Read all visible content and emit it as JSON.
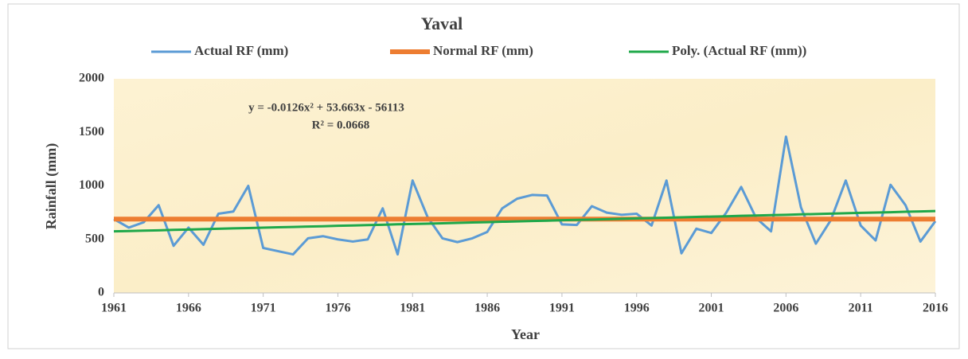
{
  "chart_data": {
    "type": "line",
    "title": "Yaval",
    "x": [
      1961,
      1962,
      1963,
      1964,
      1965,
      1966,
      1967,
      1968,
      1969,
      1970,
      1971,
      1972,
      1973,
      1974,
      1975,
      1976,
      1977,
      1978,
      1979,
      1980,
      1981,
      1982,
      1983,
      1984,
      1985,
      1986,
      1987,
      1988,
      1989,
      1990,
      1991,
      1992,
      1993,
      1994,
      1995,
      1996,
      1997,
      1998,
      1999,
      2000,
      2001,
      2002,
      2003,
      2004,
      2005,
      2006,
      2007,
      2008,
      2009,
      2010,
      2011,
      2012,
      2013,
      2014,
      2015,
      2016
    ],
    "series": [
      {
        "name": "Actual RF (mm)",
        "color": "#5b9bd5",
        "width": 3,
        "values": [
          690,
          610,
          660,
          820,
          440,
          610,
          450,
          740,
          760,
          1000,
          420,
          390,
          360,
          510,
          530,
          500,
          480,
          500,
          790,
          360,
          1050,
          710,
          510,
          475,
          510,
          570,
          790,
          880,
          915,
          910,
          640,
          635,
          810,
          750,
          730,
          740,
          630,
          1050,
          370,
          600,
          560,
          750,
          990,
          700,
          575,
          1460,
          800,
          460,
          680,
          1050,
          630,
          490,
          1010,
          820,
          480,
          670
        ]
      },
      {
        "name": "Normal RF (mm)",
        "color": "#ed7d31",
        "width": 6,
        "values": [
          690,
          690,
          690,
          690,
          690,
          690,
          690,
          690,
          690,
          690,
          690,
          690,
          690,
          690,
          690,
          690,
          690,
          690,
          690,
          690,
          690,
          690,
          690,
          690,
          690,
          690,
          690,
          690,
          690,
          690,
          690,
          690,
          690,
          690,
          690,
          690,
          690,
          690,
          690,
          690,
          690,
          690,
          690,
          690,
          690,
          690,
          690,
          690,
          690,
          690,
          690,
          690,
          690,
          690,
          690,
          690
        ]
      },
      {
        "name": "Poly. (Actual RF (mm))",
        "color": "#1fa84a",
        "width": 3,
        "values": [
          575,
          578,
          582,
          585,
          589,
          592,
          596,
          599,
          603,
          606,
          610,
          613,
          616,
          620,
          623,
          627,
          630,
          634,
          637,
          641,
          644,
          647,
          651,
          654,
          658,
          661,
          665,
          668,
          672,
          675,
          679,
          682,
          685,
          689,
          692,
          696,
          699,
          703,
          706,
          710,
          713,
          716,
          720,
          723,
          727,
          730,
          734,
          737,
          741,
          744,
          748,
          751,
          754,
          758,
          761,
          765
        ]
      }
    ],
    "xlim": [
      1961,
      2016
    ],
    "xticks": [
      1961,
      1966,
      1971,
      1976,
      1981,
      1986,
      1991,
      1996,
      2001,
      2006,
      2011,
      2016
    ],
    "ylim": [
      0,
      2000
    ],
    "yticks": [
      0,
      500,
      1000,
      1500,
      2000
    ],
    "x_label": "Year",
    "y_label": "Rainfall (mm)",
    "annotations": [
      "y = -0.0126x² + 53.663x - 56113",
      "R² = 0.0668"
    ]
  }
}
